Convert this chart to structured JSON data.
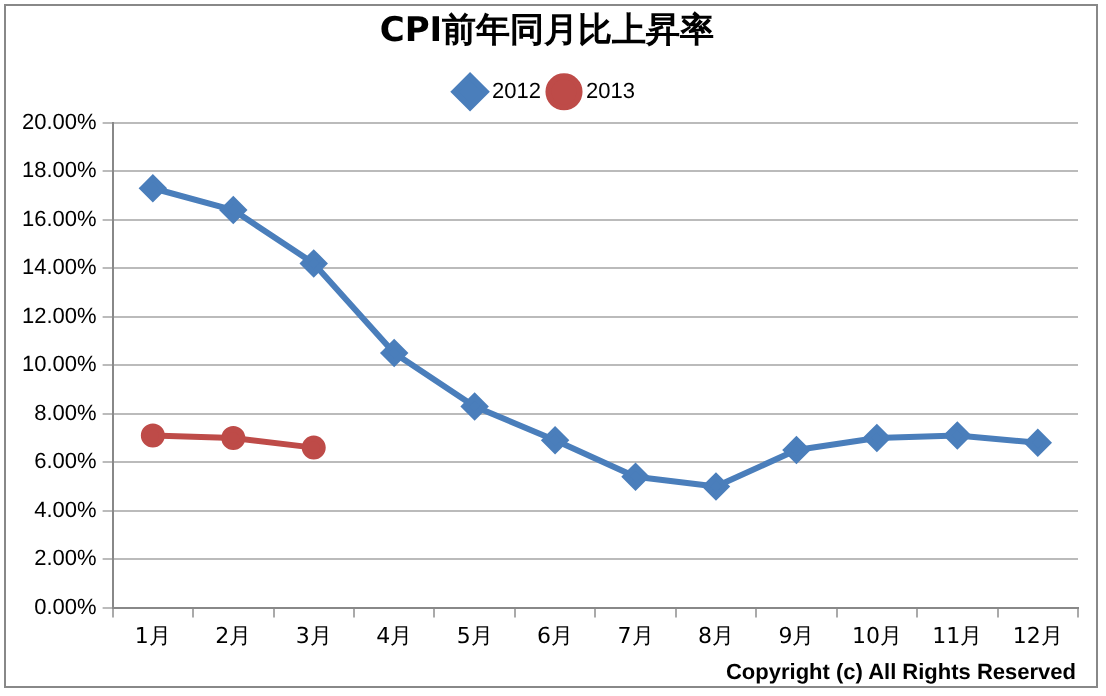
{
  "chart_data": {
    "type": "line",
    "title": "CPI前年同月比上昇率",
    "categories": [
      "1月",
      "2月",
      "3月",
      "4月",
      "5月",
      "6月",
      "7月",
      "8月",
      "9月",
      "10月",
      "11月",
      "12月"
    ],
    "series": [
      {
        "name": "2012",
        "color": "#4a7ebb",
        "marker": "diamond",
        "values": [
          17.3,
          16.4,
          14.2,
          10.5,
          8.3,
          6.9,
          5.4,
          5.0,
          6.5,
          7.0,
          7.1,
          6.8
        ]
      },
      {
        "name": "2013",
        "color": "#be4b48",
        "marker": "circle",
        "values": [
          7.1,
          7.0,
          6.6,
          null,
          null,
          null,
          null,
          null,
          null,
          null,
          null,
          null
        ]
      }
    ],
    "ylim": [
      0,
      20
    ],
    "yticks": [
      {
        "value": 0,
        "label": "0.00%"
      },
      {
        "value": 2,
        "label": "2.00%"
      },
      {
        "value": 4,
        "label": "4.00%"
      },
      {
        "value": 6,
        "label": "6.00%"
      },
      {
        "value": 8,
        "label": "8.00%"
      },
      {
        "value": 10,
        "label": "10.00%"
      },
      {
        "value": 12,
        "label": "12.00%"
      },
      {
        "value": 14,
        "label": "14.00%"
      },
      {
        "value": 16,
        "label": "16.00%"
      },
      {
        "value": 18,
        "label": "18.00%"
      },
      {
        "value": 20,
        "label": "20.00%"
      }
    ],
    "grid": "y",
    "legend": "top",
    "annotations": [
      "Copyright (c) All Rights Reserved"
    ]
  }
}
